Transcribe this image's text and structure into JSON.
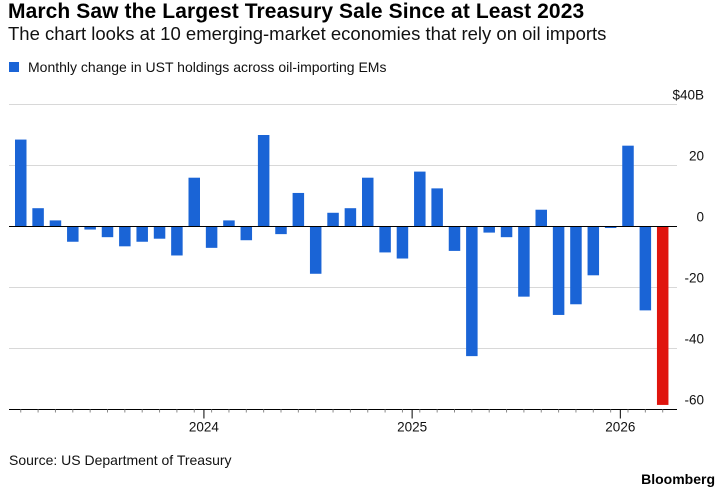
{
  "title": "March Saw the Largest Treasury Sale Since at Least 2023",
  "subtitle": "The chart looks at 10 emerging-market economies that rely on oil imports",
  "legend": {
    "label": "Monthly change in UST holdings across oil-importing EMs",
    "color": "#1a64d6"
  },
  "source": "Source: US Department of Treasury",
  "brand": "Bloomberg",
  "chart_data": {
    "type": "bar",
    "title": "March Saw the Largest Treasury Sale Since at Least 2023",
    "subtitle": "The chart looks at 10 emerging-market economies that rely on oil imports",
    "series": [
      {
        "name": "Monthly change in UST holdings across oil-importing EMs",
        "color": "#1a64d6",
        "highlight_color": "#e0150e",
        "highlight_index": 37,
        "categories": [
          "2023-02",
          "2023-03",
          "2023-04",
          "2023-05",
          "2023-06",
          "2023-07",
          "2023-08",
          "2023-09",
          "2023-10",
          "2023-11",
          "2023-12",
          "2024-01",
          "2024-02",
          "2024-03",
          "2024-04",
          "2024-05",
          "2024-06",
          "2024-07",
          "2024-08",
          "2024-09",
          "2024-10",
          "2024-11",
          "2024-12",
          "2025-01",
          "2025-02",
          "2025-03",
          "2025-04",
          "2025-05",
          "2025-06",
          "2025-07",
          "2025-08",
          "2025-09",
          "2025-10",
          "2025-11",
          "2025-12",
          "2026-01",
          "2026-02",
          "2026-03"
        ],
        "values": [
          28.5,
          6,
          2,
          -5,
          -1,
          -3.5,
          -6.5,
          -5,
          -4,
          -9.5,
          16,
          -7,
          2,
          -4.5,
          30,
          -2.5,
          11,
          -15.5,
          4.5,
          6,
          16,
          -8.5,
          -10.5,
          18,
          12.5,
          -8,
          -42.5,
          -2,
          -3.5,
          -23,
          5.5,
          -29,
          -25.5,
          -16,
          -0.5,
          26.5,
          -27.5,
          -58.5
        ]
      }
    ],
    "ylim": [
      -60,
      40
    ],
    "y_ticks": [
      -60,
      -40,
      -20,
      0,
      20,
      40
    ],
    "y_tick_labels": [
      "-60",
      "-40",
      "-20",
      "0",
      "20",
      "$40B"
    ],
    "x_tick_labels": [
      {
        "label": "2024",
        "category": "2024-01"
      },
      {
        "label": "2025",
        "category": "2025-01"
      },
      {
        "label": "2026",
        "category": "2026-01"
      }
    ],
    "grid": true,
    "y_axis_position": "right",
    "legend_position": "top-left"
  }
}
